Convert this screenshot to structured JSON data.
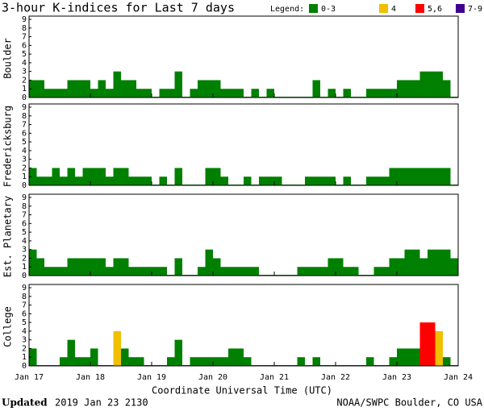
{
  "header": {
    "title": "3-hour K-indices for Last 7 days",
    "legend_title": "Legend:",
    "legend": [
      {
        "label": "0-3",
        "color": "#008000",
        "min": 0,
        "max": 3
      },
      {
        "label": "4",
        "color": "#f0c000",
        "min": 4,
        "max": 4
      },
      {
        "label": "5,6",
        "color": "#ff0000",
        "min": 5,
        "max": 6
      },
      {
        "label": "7-9",
        "color": "#400090",
        "min": 7,
        "max": 9
      }
    ]
  },
  "chart_data": [
    {
      "type": "bar",
      "ylabel": "Boulder",
      "ylim": [
        0,
        9
      ],
      "yticks": [
        0,
        1,
        2,
        3,
        4,
        5,
        6,
        7,
        8,
        9
      ],
      "values": [
        2,
        2,
        1,
        1,
        1,
        2,
        2,
        2,
        1,
        2,
        1,
        3,
        2,
        2,
        1,
        1,
        0,
        1,
        1,
        3,
        0,
        1,
        2,
        2,
        2,
        1,
        1,
        1,
        0,
        1,
        0,
        1,
        0,
        0,
        0,
        0,
        0,
        2,
        0,
        1,
        0,
        1,
        0,
        0,
        1,
        1,
        1,
        1,
        2,
        2,
        2,
        3,
        3,
        3,
        2,
        0
      ]
    },
    {
      "type": "bar",
      "ylabel": "Fredericksburg",
      "ylim": [
        0,
        9
      ],
      "yticks": [
        0,
        1,
        2,
        3,
        4,
        5,
        6,
        7,
        8,
        9
      ],
      "values": [
        2,
        1,
        1,
        2,
        1,
        2,
        1,
        2,
        2,
        2,
        1,
        2,
        2,
        1,
        1,
        1,
        0,
        1,
        0,
        2,
        0,
        0,
        0,
        2,
        2,
        1,
        0,
        0,
        1,
        0,
        1,
        1,
        1,
        0,
        0,
        0,
        1,
        1,
        1,
        1,
        0,
        1,
        0,
        0,
        1,
        1,
        1,
        2,
        2,
        2,
        2,
        2,
        2,
        2,
        2,
        0
      ]
    },
    {
      "type": "bar",
      "ylabel": "Est. Planetary",
      "ylim": [
        0,
        9
      ],
      "yticks": [
        0,
        1,
        2,
        3,
        4,
        5,
        6,
        7,
        8,
        9
      ],
      "values": [
        3,
        2,
        1,
        1,
        1,
        2,
        2,
        2,
        2,
        2,
        1,
        2,
        2,
        1,
        1,
        1,
        1,
        1,
        0,
        2,
        0,
        0,
        1,
        3,
        2,
        1,
        1,
        1,
        1,
        1,
        0,
        0,
        0,
        0,
        0,
        1,
        1,
        1,
        1,
        2,
        2,
        1,
        1,
        0,
        0,
        1,
        1,
        2,
        2,
        3,
        3,
        2,
        3,
        3,
        3,
        2
      ]
    },
    {
      "type": "bar",
      "ylabel": "College",
      "ylim": [
        0,
        9
      ],
      "yticks": [
        0,
        1,
        2,
        3,
        4,
        5,
        6,
        7,
        8,
        9
      ],
      "values": [
        2,
        0,
        0,
        0,
        1,
        3,
        1,
        1,
        2,
        0,
        0,
        4,
        2,
        1,
        1,
        0,
        0,
        0,
        1,
        3,
        0,
        1,
        1,
        1,
        1,
        1,
        2,
        2,
        1,
        0,
        0,
        0,
        0,
        0,
        0,
        1,
        0,
        1,
        0,
        0,
        0,
        0,
        0,
        0,
        1,
        0,
        0,
        1,
        2,
        2,
        2,
        5,
        5,
        4,
        1,
        0
      ]
    }
  ],
  "xaxis": {
    "xlim": [
      0,
      56
    ],
    "xlabel": "Coordinate Universal Time (UTC)",
    "xticks": [
      {
        "value": 0,
        "label": "Jan 17"
      },
      {
        "value": 8,
        "label": "Jan 18"
      },
      {
        "value": 16,
        "label": "Jan 19"
      },
      {
        "value": 24,
        "label": "Jan 20"
      },
      {
        "value": 32,
        "label": "Jan 21"
      },
      {
        "value": 40,
        "label": "Jan 22"
      },
      {
        "value": 48,
        "label": "Jan 23"
      },
      {
        "value": 56,
        "label": "Jan 24"
      }
    ]
  },
  "footer": {
    "updated_label": "Updated",
    "updated": "2019 Jan 23 2130",
    "source": "NOAA/SWPC Boulder, CO USA"
  }
}
